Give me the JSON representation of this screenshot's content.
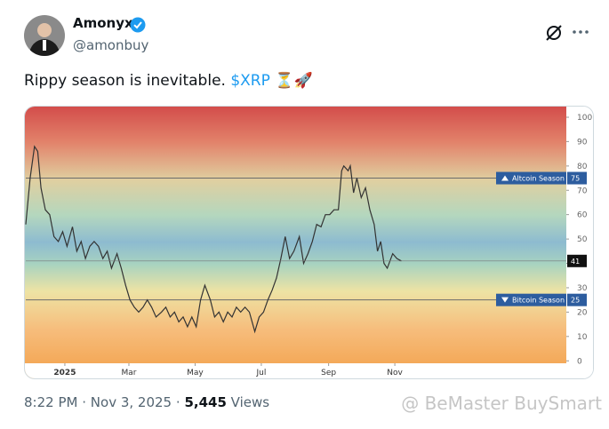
{
  "author": {
    "name": "Amonyx",
    "handle": "@amonbuy"
  },
  "tweet": {
    "text": "Rippy season is inevitable.",
    "cashtag": "$XRP",
    "emoji": "⏳🚀"
  },
  "footer": {
    "time": "8:22 PM",
    "separator": "·",
    "date": "Nov 3, 2025",
    "views": "5,445",
    "views_label": "Views"
  },
  "watermark": "@ BeMaster BuySmart",
  "chart_data": {
    "type": "line",
    "x": [
      -36,
      -32,
      -28,
      -25,
      -22,
      -18,
      -14,
      -10,
      -6,
      -2,
      2,
      7,
      11,
      15,
      19,
      23,
      27,
      31,
      35,
      39,
      43,
      48,
      52,
      56,
      60,
      64,
      68,
      72,
      76,
      80,
      84,
      89,
      93,
      97,
      101,
      105,
      109,
      113,
      117,
      121,
      125,
      129,
      134,
      138,
      142,
      146,
      150,
      154,
      158,
      162,
      166,
      170,
      175,
      179,
      183,
      187,
      191,
      195,
      199,
      203,
      207,
      211,
      216,
      220,
      224,
      228,
      232,
      236,
      240,
      244,
      248,
      252,
      255,
      257,
      261,
      263,
      266,
      269,
      273,
      277,
      281,
      285,
      288,
      291,
      294,
      297,
      302,
      306,
      310
    ],
    "series": [
      {
        "color": "#333333",
        "values": [
          56,
          75,
          88,
          86,
          71,
          62,
          60,
          51,
          49,
          53,
          47,
          55,
          45,
          49,
          42,
          47,
          49,
          47,
          42,
          45,
          38,
          44,
          38,
          31,
          25,
          22,
          20,
          22,
          25,
          22,
          18,
          20,
          22,
          18,
          20,
          16,
          18,
          14,
          18,
          14,
          25,
          31,
          25,
          18,
          20,
          16,
          20,
          18,
          22,
          20,
          22,
          20,
          12,
          18,
          20,
          25,
          29,
          34,
          42,
          51,
          42,
          45,
          51,
          40,
          44,
          49,
          56,
          55,
          60,
          60,
          62,
          62,
          78,
          80,
          78,
          80,
          69,
          75,
          67,
          71,
          62,
          56,
          45,
          49,
          40,
          38,
          44,
          42,
          41
        ]
      }
    ],
    "xlim": [
      -36,
      462
    ],
    "ylim": [
      -1,
      104
    ],
    "xticks": [
      {
        "value": 0,
        "label": "2025"
      },
      {
        "value": 59,
        "label": "Mar"
      },
      {
        "value": 120,
        "label": "May"
      },
      {
        "value": 181,
        "label": "Jul"
      },
      {
        "value": 243,
        "label": "Sep"
      },
      {
        "value": 304,
        "label": "Nov"
      }
    ],
    "yticks": [
      0,
      10,
      20,
      30,
      40,
      50,
      60,
      70,
      80,
      90,
      100
    ],
    "annotations": [
      {
        "label": "Altcoin Season",
        "value": 75,
        "color": "#2d5d9f"
      },
      {
        "label": "Bitcoin Season",
        "value": 25,
        "color": "#2d5d9f"
      }
    ]
  }
}
